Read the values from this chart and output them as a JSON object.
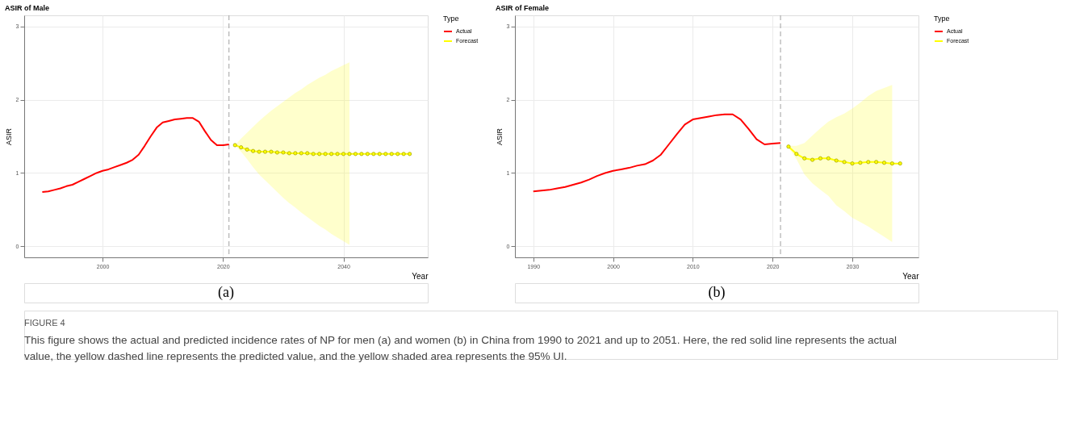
{
  "chart_data": [
    {
      "type": "line",
      "title": "ASIR of Male",
      "xlabel": "Year",
      "ylabel": "ASIR",
      "legend_title": "Type",
      "legend": "right",
      "grid": true,
      "xlim": [
        1987,
        2054
      ],
      "xticks": [
        2000,
        2020,
        2040
      ],
      "ylim": [
        -0.15,
        3.15
      ],
      "yticks": [
        0,
        1,
        2,
        3
      ],
      "ref_lines": [
        {
          "axis": "x",
          "value": 2021,
          "label": null,
          "color": "#a0a0a0",
          "line_style": "dashed"
        }
      ],
      "annotations": [
        "(a)"
      ],
      "series": [
        {
          "name": "Actual",
          "color": "#ff0000",
          "marker": "none",
          "x": [
            1990,
            1991,
            1992,
            1993,
            1994,
            1995,
            1996,
            1997,
            1998,
            1999,
            2000,
            2001,
            2002,
            2003,
            2004,
            2005,
            2006,
            2007,
            2008,
            2009,
            2010,
            2011,
            2012,
            2013,
            2014,
            2015,
            2016,
            2017,
            2018,
            2019,
            2020,
            2021
          ],
          "values": [
            0.74,
            0.75,
            0.77,
            0.79,
            0.82,
            0.84,
            0.88,
            0.92,
            0.96,
            1.0,
            1.03,
            1.05,
            1.08,
            1.11,
            1.14,
            1.18,
            1.25,
            1.37,
            1.5,
            1.62,
            1.69,
            1.71,
            1.73,
            1.74,
            1.75,
            1.75,
            1.7,
            1.57,
            1.45,
            1.38,
            1.38,
            1.39
          ]
        },
        {
          "name": "Forecast",
          "color": "#ffff00",
          "marker": "circle",
          "x": [
            2022,
            2023,
            2024,
            2025,
            2026,
            2027,
            2028,
            2029,
            2030,
            2031,
            2032,
            2033,
            2034,
            2035,
            2036,
            2037,
            2038,
            2039,
            2040,
            2041,
            2042,
            2043,
            2044,
            2045,
            2046,
            2047,
            2048,
            2049,
            2050,
            2051
          ],
          "values": [
            1.38,
            1.35,
            1.32,
            1.3,
            1.29,
            1.29,
            1.29,
            1.28,
            1.28,
            1.27,
            1.27,
            1.27,
            1.27,
            1.26,
            1.26,
            1.26,
            1.26,
            1.26,
            1.26,
            1.26,
            1.26,
            1.26,
            1.26,
            1.26,
            1.26,
            1.26,
            1.26,
            1.26,
            1.26,
            1.26
          ],
          "upper": [
            1.38,
            1.47,
            1.55,
            1.63,
            1.71,
            1.78,
            1.85,
            1.91,
            1.97,
            2.03,
            2.09,
            2.14,
            2.2,
            2.25,
            2.3,
            2.34,
            2.39,
            2.43,
            2.47,
            2.51,
            null,
            null,
            null,
            null,
            null,
            null,
            null,
            null,
            null,
            null
          ],
          "lower": [
            1.38,
            1.29,
            1.19,
            1.08,
            0.98,
            0.9,
            0.82,
            0.74,
            0.66,
            0.59,
            0.53,
            0.46,
            0.4,
            0.34,
            0.28,
            0.23,
            0.17,
            0.12,
            0.07,
            0.02,
            null,
            null,
            null,
            null,
            null,
            null,
            null,
            null,
            null,
            null
          ]
        }
      ]
    },
    {
      "type": "line",
      "title": "ASIR of Female",
      "xlabel": "Year",
      "ylabel": "ASIR",
      "legend_title": "Type",
      "legend": "right",
      "grid": true,
      "xlim": [
        1987.7,
        2038.3
      ],
      "xticks": [
        1990,
        2000,
        2010,
        2020,
        2030
      ],
      "ylim": [
        -0.15,
        3.15
      ],
      "yticks": [
        0,
        1,
        2,
        3
      ],
      "ref_lines": [
        {
          "axis": "x",
          "value": 2021,
          "label": null,
          "color": "#a0a0a0",
          "line_style": "dashed"
        }
      ],
      "annotations": [
        "(b)",
        "FIGURE 4",
        "This figure shows the actual and predicted incidence rates of NP for men (a) and women (b) in China from 1990 to 2021 and up to 2051. Here, the red solid line represents the actual value, the yellow dashed line represents the predicted value, and the yellow shaded area represents the 95% UI."
      ],
      "series": [
        {
          "name": "Actual",
          "color": "#ff0000",
          "marker": "none",
          "x": [
            1990,
            1991,
            1992,
            1993,
            1994,
            1995,
            1996,
            1997,
            1998,
            1999,
            2000,
            2001,
            2002,
            2003,
            2004,
            2005,
            2006,
            2007,
            2008,
            2009,
            2010,
            2011,
            2012,
            2013,
            2014,
            2015,
            2016,
            2017,
            2018,
            2019,
            2020,
            2021
          ],
          "values": [
            0.75,
            0.76,
            0.77,
            0.79,
            0.81,
            0.84,
            0.87,
            0.91,
            0.96,
            1.0,
            1.03,
            1.05,
            1.07,
            1.1,
            1.12,
            1.17,
            1.25,
            1.39,
            1.53,
            1.66,
            1.73,
            1.75,
            1.77,
            1.79,
            1.8,
            1.8,
            1.73,
            1.6,
            1.46,
            1.39,
            1.4,
            1.41
          ]
        },
        {
          "name": "Forecast",
          "color": "#ffff00",
          "marker": "circle",
          "x": [
            2022,
            2023,
            2024,
            2025,
            2026,
            2027,
            2028,
            2029,
            2030,
            2031,
            2032,
            2033,
            2034,
            2035,
            2036
          ],
          "values": [
            1.36,
            1.26,
            1.2,
            1.18,
            1.2,
            1.2,
            1.17,
            1.15,
            1.13,
            1.14,
            1.15,
            1.15,
            1.14,
            1.13,
            1.13
          ],
          "upper": [
            1.37,
            1.37,
            1.41,
            1.51,
            1.61,
            1.7,
            1.76,
            1.81,
            1.88,
            1.96,
            2.05,
            2.12,
            2.16,
            2.2,
            null
          ],
          "lower": [
            1.35,
            1.19,
            0.98,
            0.86,
            0.77,
            0.69,
            0.56,
            0.48,
            0.39,
            0.33,
            0.27,
            0.2,
            0.13,
            0.06,
            null
          ]
        }
      ]
    }
  ]
}
